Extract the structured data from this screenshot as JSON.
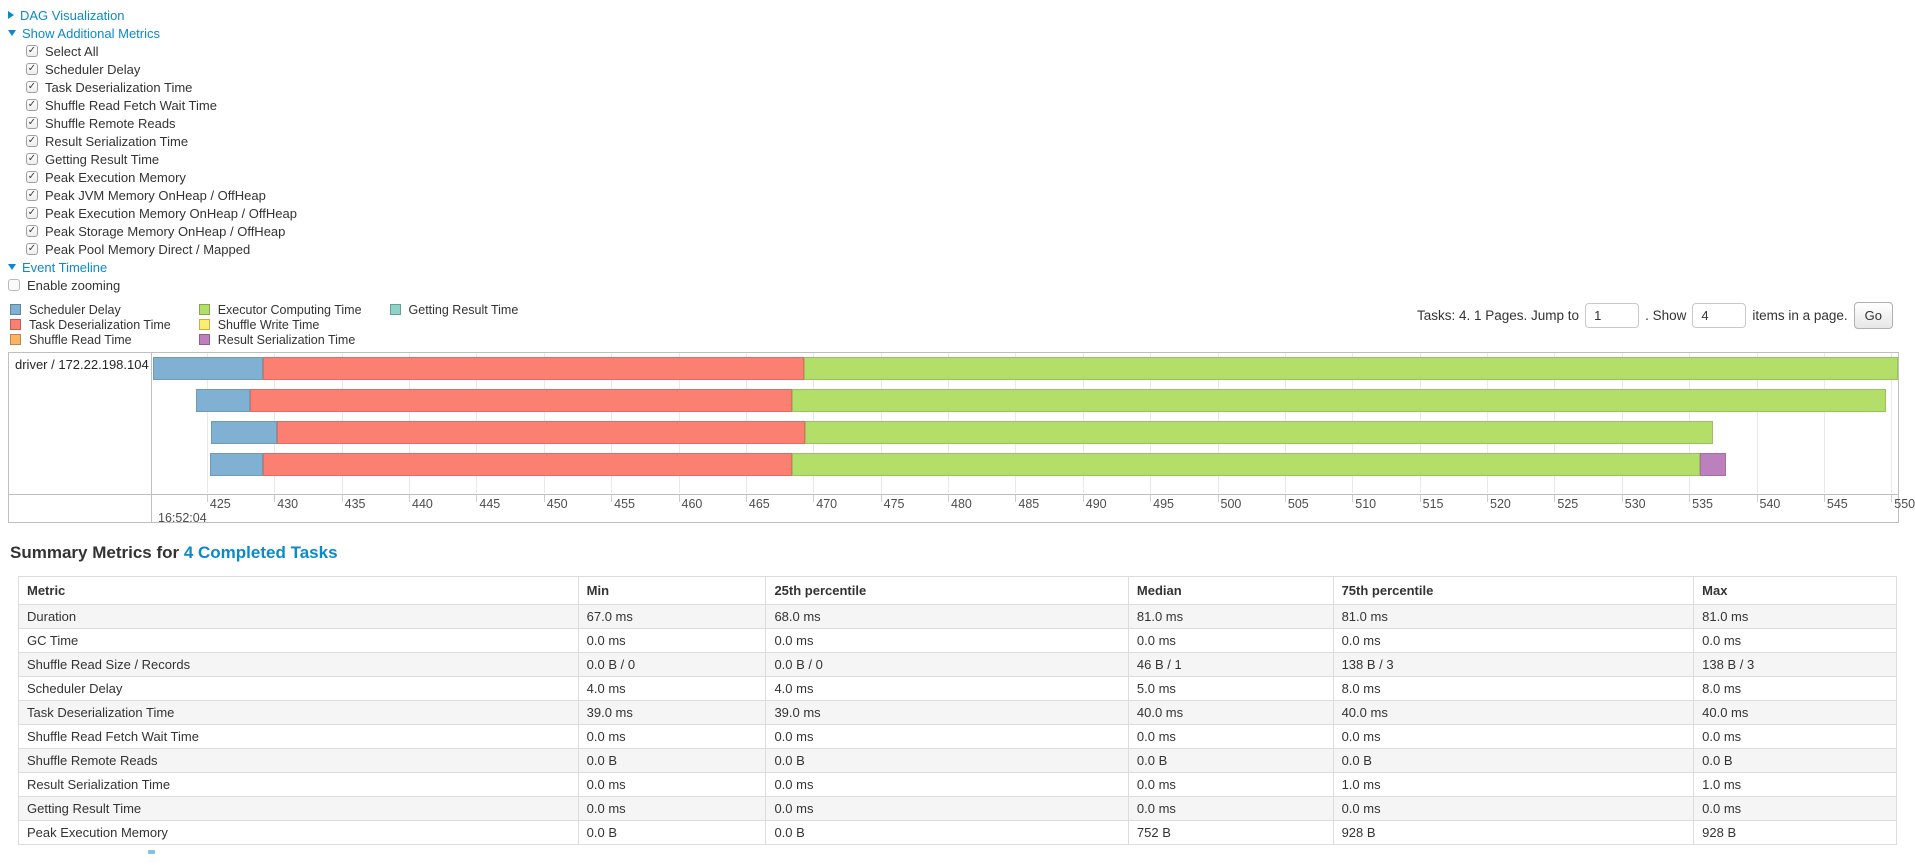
{
  "toggles": {
    "dag": {
      "label": "DAG Visualization",
      "state": "collapsed"
    },
    "additional_metrics": {
      "label": "Show Additional Metrics",
      "state": "expanded"
    },
    "event_timeline": {
      "label": "Event Timeline",
      "state": "expanded"
    }
  },
  "metrics_checkboxes": [
    {
      "label": "Select All",
      "checked": true
    },
    {
      "label": "Scheduler Delay",
      "checked": true
    },
    {
      "label": "Task Deserialization Time",
      "checked": true
    },
    {
      "label": "Shuffle Read Fetch Wait Time",
      "checked": true
    },
    {
      "label": "Shuffle Remote Reads",
      "checked": true
    },
    {
      "label": "Result Serialization Time",
      "checked": true
    },
    {
      "label": "Getting Result Time",
      "checked": true
    },
    {
      "label": "Peak Execution Memory",
      "checked": true
    },
    {
      "label": "Peak JVM Memory OnHeap / OffHeap",
      "checked": true
    },
    {
      "label": "Peak Execution Memory OnHeap / OffHeap",
      "checked": true
    },
    {
      "label": "Peak Storage Memory OnHeap / OffHeap",
      "checked": true
    },
    {
      "label": "Peak Pool Memory Direct / Mapped",
      "checked": true
    }
  ],
  "enable_zooming": {
    "label": "Enable zooming",
    "checked": false
  },
  "legend": {
    "items": [
      {
        "key": "scheduler_delay",
        "label": "Scheduler Delay",
        "color": "#80B1D3"
      },
      {
        "key": "task_deserialization",
        "label": "Task Deserialization Time",
        "color": "#FB8072"
      },
      {
        "key": "shuffle_read",
        "label": "Shuffle Read Time",
        "color": "#FDB462"
      },
      {
        "key": "executor_computing",
        "label": "Executor Computing Time",
        "color": "#B3DE69"
      },
      {
        "key": "shuffle_write",
        "label": "Shuffle Write Time",
        "color": "#FFED6F"
      },
      {
        "key": "result_serialization",
        "label": "Result Serialization Time",
        "color": "#BC80BD"
      },
      {
        "key": "getting_result",
        "label": "Getting Result Time",
        "color": "#8DD3C7"
      }
    ]
  },
  "pagination": {
    "summary_text": "Tasks: 4. 1 Pages. Jump to",
    "jump_value": "1",
    "mid_text": ". Show",
    "show_value": "4",
    "suffix_text": "items in a page.",
    "go_label": "Go"
  },
  "chart_data": {
    "type": "timeline-gantt",
    "group_label": "driver / 172.22.198.104",
    "axis": {
      "min": 421.0,
      "max": 550.5,
      "tick_start": 425,
      "tick_step": 5,
      "tick_end": 550,
      "major_label": "16:52:04"
    },
    "colors": {
      "scheduler_delay": "#80B1D3",
      "task_deserialization": "#FB8072",
      "shuffle_read": "#FDB462",
      "executor_computing": "#B3DE69",
      "shuffle_write": "#FFED6F",
      "result_serialization": "#BC80BD",
      "getting_result": "#8DD3C7"
    },
    "tasks": [
      {
        "segments": [
          {
            "type": "scheduler_delay",
            "start": 421.0,
            "end": 429.2
          },
          {
            "type": "task_deserialization",
            "start": 429.2,
            "end": 469.3
          },
          {
            "type": "executor_computing",
            "start": 469.3,
            "end": 551.0
          }
        ]
      },
      {
        "segments": [
          {
            "type": "scheduler_delay",
            "start": 424.2,
            "end": 428.2
          },
          {
            "type": "task_deserialization",
            "start": 428.2,
            "end": 468.4
          },
          {
            "type": "executor_computing",
            "start": 468.4,
            "end": 549.6
          }
        ]
      },
      {
        "segments": [
          {
            "type": "scheduler_delay",
            "start": 425.3,
            "end": 430.2
          },
          {
            "type": "task_deserialization",
            "start": 430.2,
            "end": 469.4
          },
          {
            "type": "executor_computing",
            "start": 469.4,
            "end": 536.8
          }
        ]
      },
      {
        "segments": [
          {
            "type": "scheduler_delay",
            "start": 425.2,
            "end": 429.2
          },
          {
            "type": "task_deserialization",
            "start": 429.2,
            "end": 468.4
          },
          {
            "type": "executor_computing",
            "start": 468.4,
            "end": 535.8
          },
          {
            "type": "result_serialization",
            "start": 535.8,
            "end": 537.7
          }
        ]
      }
    ]
  },
  "summary_table": {
    "title_prefix": "Summary Metrics for ",
    "title_link": "4 Completed Tasks",
    "columns": [
      "Metric",
      "Min",
      "25th percentile",
      "Median",
      "75th percentile",
      "Max"
    ],
    "col_widths": [
      "29.8%",
      "10.0%",
      "19.3%",
      "10.9%",
      "19.2%",
      "10.8%"
    ],
    "rows": [
      [
        "Duration",
        "67.0 ms",
        "68.0 ms",
        "81.0 ms",
        "81.0 ms",
        "81.0 ms"
      ],
      [
        "GC Time",
        "0.0 ms",
        "0.0 ms",
        "0.0 ms",
        "0.0 ms",
        "0.0 ms"
      ],
      [
        "Shuffle Read Size / Records",
        "0.0 B / 0",
        "0.0 B / 0",
        "46 B / 1",
        "138 B / 3",
        "138 B / 3"
      ],
      [
        "Scheduler Delay",
        "4.0 ms",
        "4.0 ms",
        "5.0 ms",
        "8.0 ms",
        "8.0 ms"
      ],
      [
        "Task Deserialization Time",
        "39.0 ms",
        "39.0 ms",
        "40.0 ms",
        "40.0 ms",
        "40.0 ms"
      ],
      [
        "Shuffle Read Fetch Wait Time",
        "0.0 ms",
        "0.0 ms",
        "0.0 ms",
        "0.0 ms",
        "0.0 ms"
      ],
      [
        "Shuffle Remote Reads",
        "0.0 B",
        "0.0 B",
        "0.0 B",
        "0.0 B",
        "0.0 B"
      ],
      [
        "Result Serialization Time",
        "0.0 ms",
        "0.0 ms",
        "0.0 ms",
        "1.0 ms",
        "1.0 ms"
      ],
      [
        "Getting Result Time",
        "0.0 ms",
        "0.0 ms",
        "0.0 ms",
        "0.0 ms",
        "0.0 ms"
      ],
      [
        "Peak Execution Memory",
        "0.0 B",
        "0.0 B",
        "752 B",
        "928 B",
        "928 B"
      ]
    ]
  }
}
